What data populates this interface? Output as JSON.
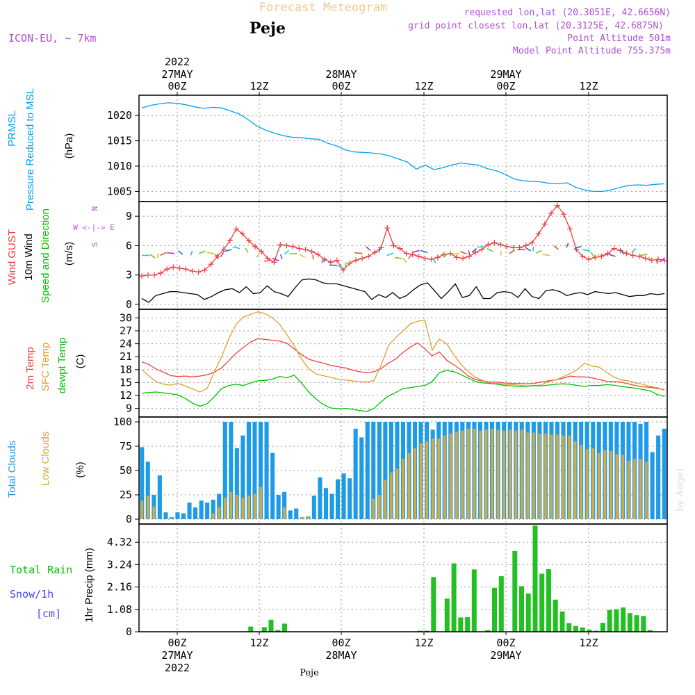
{
  "header": {
    "product": "Forecast Meteogram",
    "station": "Peje",
    "model": "ICON-EU, ~ 7km",
    "requested": "requested lon,lat (20.3051E, 42.6656N)",
    "gridpoint": "grid point closest lon,lat (20.3125E, 42.6875N)",
    "point_alt": "Point Altitude 501m",
    "model_alt": "Model Point Altitude 755.375m",
    "footer": "Peje",
    "watermark": "by Angel"
  },
  "time_axis": {
    "ticks": [
      "00Z",
      "12Z",
      "00Z",
      "12Z",
      "00Z",
      "12Z"
    ],
    "date_top": [
      "2022\n27MAY",
      "",
      "28MAY",
      "",
      "29MAY",
      ""
    ],
    "date_bottom": [
      "27MAY\n2022",
      "",
      "28MAY",
      "",
      "29MAY",
      ""
    ]
  },
  "colors": {
    "pressure": "#00a0ee",
    "gust": "#f03c3c",
    "wind": "#000000",
    "dir_label": "#00c000",
    "temp": "#ee4040",
    "sfc": "#e0a030",
    "dewpt": "#00c000",
    "total_clouds": "#1e9be6",
    "low_clouds": "#d7aa40",
    "precip": "#22c022",
    "snow": "#4444ff",
    "purple": "#b050d0"
  },
  "panel_labels": {
    "pressure": [
      "PRMSL",
      "Pressure Reduced to MSL"
    ],
    "pressure_unit": "(hPa)",
    "wind": [
      "Wind GUST",
      "10m Wind",
      "Speed and Direction"
    ],
    "wind_unit": "(m/s)",
    "compass": [
      "N",
      "W <-|-> E",
      "S"
    ],
    "temp": [
      "2m Temp",
      "SFC Temp",
      "dewpt Temp"
    ],
    "temp_unit": "(C)",
    "clouds": [
      "Total Clouds",
      "Low Clouds"
    ],
    "clouds_unit": "(%)",
    "rain_label": "Total  Rain",
    "snow_label": "Snow/1h",
    "snow_unit": "[cm]",
    "precip_unit": "1hr Precip (mm)"
  },
  "chart_data": [
    {
      "type": "line",
      "panel": "pressure",
      "ylim": [
        1003,
        1024
      ],
      "yticks": [
        1005,
        1010,
        1015,
        1020
      ],
      "xlabel": "",
      "ylabel": "(hPa)",
      "series": [
        {
          "name": "PRMSL",
          "values": [
            1021.5,
            1022,
            1022.3,
            1022.5,
            1022.4,
            1022.1,
            1021.7,
            1021.4,
            1021.6,
            1021.5,
            1020.9,
            1020.3,
            1019.2,
            1017.9,
            1017.1,
            1016.5,
            1016,
            1015.7,
            1015.6,
            1015.4,
            1015.3,
            1014.5,
            1014,
            1013.2,
            1012.8,
            1012.7,
            1012.6,
            1012.4,
            1012,
            1011.4,
            1010.8,
            1009.4,
            1010.2,
            1009.3,
            1009.7,
            1010.2,
            1010.6,
            1010.4,
            1010.2,
            1009.5,
            1009.1,
            1008.4,
            1007.5,
            1007.1,
            1007,
            1006.9,
            1006.6,
            1006.5,
            1006.7,
            1005.8,
            1005.3,
            1005,
            1005,
            1005.3,
            1005.8,
            1006.2,
            1006.3,
            1006.2,
            1006.4,
            1006.5
          ]
        }
      ]
    },
    {
      "type": "line",
      "panel": "wind",
      "ylim": [
        -0.5,
        10.5
      ],
      "yticks": [
        0,
        3,
        6,
        9
      ],
      "ylabel": "(m/s)",
      "series": [
        {
          "name": "Wind GUST",
          "values": [
            2.9,
            3,
            3,
            3.2,
            3.6,
            3.8,
            3.7,
            3.6,
            3.4,
            3.3,
            3.5,
            4.1,
            4.9,
            5.6,
            6.5,
            7.7,
            7.2,
            6.5,
            5.9,
            5.4,
            4.7,
            4.3,
            6.1,
            6,
            5.9,
            5.7,
            5.6,
            5.4,
            5.1,
            4.6,
            4.3,
            4.5,
            3.5,
            4.2,
            4.5,
            4.7,
            4.9,
            5.3,
            5.8,
            7.8,
            6,
            5.7,
            5.2,
            5.1,
            4.9,
            4.7,
            4.6,
            4.8,
            5.1,
            5.2,
            4.8,
            4.7,
            4.9,
            5.3,
            5.6,
            6.1,
            6.3,
            6.1,
            5.9,
            5.8,
            5.8,
            6,
            6.3,
            7.2,
            8.2,
            9.3,
            10.1,
            9.2,
            7.7,
            5.6,
            4.9,
            4.6,
            4.8,
            4.9,
            5.2,
            5.7,
            5.5,
            5.2,
            5,
            4.9,
            4.7,
            4.5,
            4.6,
            4.5
          ]
        },
        {
          "name": "10m Wind",
          "values": [
            0.6,
            0.2,
            0.9,
            1.1,
            1.3,
            1.3,
            1.2,
            1.1,
            1,
            0.5,
            0.8,
            1.2,
            1.5,
            1.6,
            1.2,
            1.8,
            1.1,
            1.2,
            1.9,
            1.3,
            1.1,
            0.8,
            1.7,
            2.5,
            2.6,
            2.5,
            2.2,
            2.1,
            2.1,
            1.9,
            1.7,
            1.5,
            1.3,
            0.5,
            1,
            0.7,
            1.2,
            0.6,
            0.9,
            1.5,
            2,
            2.2,
            1.4,
            0.6,
            1.3,
            2.1,
            0.7,
            0.9,
            1.8,
            0.6,
            0.6,
            1.2,
            1.3,
            1.2,
            0.7,
            1.6,
            0.8,
            0.6,
            1.4,
            1.5,
            1.3,
            0.9,
            1.1,
            1.2,
            1,
            1.3,
            1.2,
            1.1,
            1.2,
            1,
            0.8,
            0.9,
            0.9,
            1.1,
            1,
            1.1
          ]
        },
        {
          "name": "Direction",
          "values": [
            5.0,
            5.1,
            5.2,
            5.3,
            5.2,
            5.1,
            5.0,
            5.2,
            5.3,
            5.1,
            5.3,
            5.6,
            5.7,
            5.3,
            4.8,
            4.4,
            4.7,
            5.1,
            5.5,
            5.2,
            4.8,
            4.6,
            4.3,
            4.0,
            4.0,
            4.3,
            4.5,
            5.2,
            5.5,
            5.3,
            5.0,
            4.8,
            4.7,
            5.1,
            5.5,
            5.3,
            4.2,
            4.8,
            5.1,
            5.4,
            5.5,
            5.7,
            5.9,
            5.4,
            5.0,
            5.2,
            5.6,
            5.8,
            5.9,
            5.5,
            5.0,
            5.6,
            5.8,
            5.7,
            5.6,
            5.3,
            5.1,
            5.1,
            4.9,
            5.1,
            5.3,
            5.0,
            4.8,
            4.6,
            4.7
          ]
        }
      ]
    },
    {
      "type": "line",
      "panel": "temp",
      "ylim": [
        7,
        32
      ],
      "yticks": [
        9,
        12,
        15,
        18,
        21,
        24,
        27,
        30
      ],
      "ylabel": "(C)",
      "series": [
        {
          "name": "2m Temp",
          "values": [
            19.8,
            19.2,
            18.1,
            17.4,
            16.6,
            16.4,
            16.5,
            16.3,
            16.5,
            16.8,
            17.4,
            18.4,
            20.1,
            21.8,
            23.2,
            24.4,
            25.2,
            25,
            24.8,
            24.6,
            24.1,
            22.8,
            21.5,
            20.4,
            19.9,
            19.5,
            19,
            18.7,
            18.4,
            17.9,
            17.5,
            17.3,
            17.5,
            18.3,
            19.5,
            20.5,
            22,
            23.2,
            24.2,
            22.8,
            21.2,
            22.1,
            20.2,
            19.1,
            17.9,
            16.5,
            15.7,
            15.3,
            15.1,
            15.1,
            14.9,
            14.8,
            14.8,
            14.7,
            14.8,
            15.1,
            15.4,
            15.6,
            16,
            16.5,
            16.3,
            16.3,
            16.1,
            15.7,
            15.3,
            15.2,
            15.1,
            14.7,
            14.3,
            14,
            13.9,
            13.6,
            13.4
          ]
        },
        {
          "name": "SFC Temp",
          "values": [
            18,
            16.5,
            15.2,
            14.6,
            14.4,
            14.8,
            14.2,
            13.5,
            12.8,
            13.6,
            17.5,
            21,
            25.2,
            28.5,
            30.2,
            30.8,
            31.4,
            31,
            30,
            28.5,
            26.1,
            23.5,
            20.5,
            18.2,
            17,
            16.6,
            16.2,
            15.8,
            15.6,
            15.4,
            15.2,
            15.1,
            15.5,
            19.2,
            23.6,
            25.5,
            27,
            28.6,
            29.2,
            29.5,
            22.5,
            25.1,
            24,
            21.4,
            19.2,
            17.5,
            16.2,
            15.5,
            14.7,
            14.8,
            14.6,
            14.5,
            14.4,
            14.2,
            14.3,
            14.4,
            15.2,
            15.6,
            16.3,
            17.1,
            18,
            19.5,
            18.8,
            18.6,
            17.4,
            16.3,
            15.6,
            15.4,
            14.9,
            14.6,
            14.1,
            13.8,
            13.2
          ]
        },
        {
          "name": "dewpt Temp",
          "values": [
            12.5,
            12.7,
            12.8,
            12.6,
            12.4,
            12.1,
            11.3,
            10.2,
            9.5,
            10.1,
            11.7,
            13.6,
            14.3,
            14.6,
            14.3,
            14.9,
            15.4,
            15.5,
            15.8,
            16.4,
            16.1,
            16.7,
            14.9,
            12.8,
            11.2,
            9.9,
            9.1,
            8.9,
            9,
            8.8,
            8.5,
            8.3,
            9,
            10.6,
            11.9,
            12.7,
            13.6,
            13.8,
            14.1,
            14.3,
            15.2,
            17.3,
            17.8,
            17.5,
            16.8,
            16,
            15.2,
            14.9,
            14.8,
            14.6,
            14.3,
            14.2,
            14.1,
            14.1,
            14.3,
            14.2,
            14.4,
            14.6,
            14.7,
            14.6,
            14.3,
            14.1,
            14.3,
            14.3,
            14.5,
            14.4,
            14.1,
            13.9,
            13.7,
            13.4,
            13.1,
            12.2,
            11.8
          ]
        }
      ]
    },
    {
      "type": "bar",
      "panel": "clouds",
      "ylim": [
        -5,
        105
      ],
      "yticks": [
        0,
        25,
        50,
        75,
        100
      ],
      "ylabel": "(%)",
      "series": [
        {
          "name": "Total Clouds",
          "values": [
            74,
            59,
            25,
            45,
            7,
            2,
            7,
            6,
            17,
            12,
            19,
            17,
            20,
            26,
            100,
            100,
            73,
            86,
            100,
            100,
            100,
            100,
            68,
            25,
            28,
            9,
            11,
            2,
            3,
            24,
            43,
            32,
            26,
            41,
            47,
            42,
            93,
            84,
            100,
            100,
            100,
            100,
            100,
            100,
            100,
            100,
            100,
            100,
            100,
            92,
            100,
            100,
            100,
            100,
            100,
            100,
            100,
            100,
            100,
            100,
            100,
            100,
            100,
            100,
            100,
            100,
            100,
            100,
            100,
            100,
            100,
            100,
            100,
            100,
            100,
            100,
            100,
            100,
            100,
            100,
            100,
            100,
            100,
            100,
            98,
            100,
            69,
            86,
            93
          ]
        },
        {
          "name": "Low Clouds",
          "values": [
            19,
            24,
            13,
            0,
            0,
            1,
            0,
            0,
            0,
            0,
            0,
            0,
            6,
            12,
            22,
            28,
            25,
            22,
            24,
            26,
            33,
            0,
            0,
            0,
            12,
            0,
            0,
            2,
            3,
            0,
            0,
            0,
            0,
            0,
            0,
            0,
            0,
            0,
            0,
            21,
            25,
            40,
            48,
            52,
            62,
            68,
            73,
            78,
            80,
            83,
            83,
            86,
            88,
            90,
            91,
            93,
            93,
            91,
            92,
            93,
            92,
            91,
            92,
            91,
            92,
            89,
            89,
            88,
            88,
            87,
            87,
            86,
            86,
            80,
            76,
            72,
            73,
            68,
            71,
            70,
            67,
            66,
            60,
            62,
            62,
            59
          ]
        }
      ]
    },
    {
      "type": "bar",
      "panel": "precip",
      "ylim": [
        0,
        5.2
      ],
      "yticks": [
        0,
        1.08,
        2.16,
        3.24,
        4.32
      ],
      "ylabel": "1hr Precip (mm)",
      "series": [
        {
          "name": "Total Rain",
          "values": [
            0,
            0,
            0,
            0,
            0,
            0,
            0,
            0,
            0,
            0,
            0,
            0,
            0,
            0,
            0,
            0,
            0.25,
            0,
            0.22,
            0.58,
            0.08,
            0.39,
            0,
            0,
            0,
            0,
            0,
            0,
            0,
            0,
            0,
            0,
            0,
            0,
            0,
            0,
            0,
            0,
            0,
            0,
            0,
            0.05,
            0.05,
            2.64,
            0,
            1.6,
            3.3,
            0.69,
            0.7,
            3.01,
            0,
            0.08,
            2.12,
            2.68,
            0,
            3.9,
            2.2,
            1.85,
            5.12,
            2.8,
            3.02,
            1.55,
            0.98,
            0.42,
            0.28,
            0.21,
            0.1,
            0.05,
            0.43,
            1.05,
            1.08,
            1.17,
            0.9,
            0.8,
            0.76,
            0.08,
            0,
            0
          ]
        }
      ]
    }
  ]
}
